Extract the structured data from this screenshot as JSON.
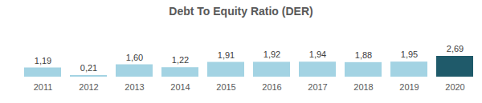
{
  "chart_data": {
    "type": "bar",
    "title": "Debt To Equity Ratio (DER)",
    "categories": [
      "2011",
      "2012",
      "2013",
      "2014",
      "2015",
      "2016",
      "2017",
      "2018",
      "2019",
      "2020"
    ],
    "values": [
      1.19,
      0.21,
      1.6,
      1.22,
      1.91,
      1.92,
      1.94,
      1.88,
      1.95,
      2.69
    ],
    "value_labels": [
      "1,19",
      "0,21",
      "1,60",
      "1,22",
      "1,91",
      "1,92",
      "1,94",
      "1,88",
      "1,95",
      "2,69"
    ],
    "colors": [
      "#a3d3e3",
      "#a3d3e3",
      "#a3d3e3",
      "#a3d3e3",
      "#a3d3e3",
      "#a3d3e3",
      "#a3d3e3",
      "#a3d3e3",
      "#a3d3e3",
      "#1f5a6a"
    ],
    "ylim": [
      0,
      2.69
    ],
    "data_labels": true,
    "tick_labels": "x",
    "grid": false
  }
}
